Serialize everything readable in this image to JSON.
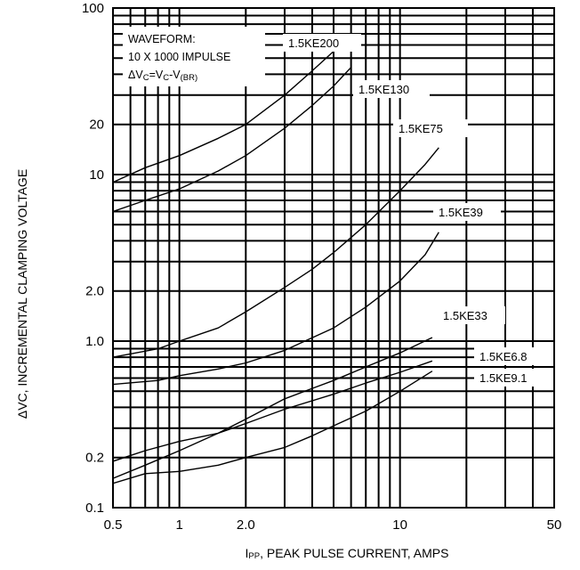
{
  "chart_data": {
    "type": "line",
    "x_scale": "log",
    "y_scale": "log",
    "xlim": [
      0.5,
      50
    ],
    "ylim": [
      0.1,
      100
    ],
    "grid": true,
    "xlabel": {
      "prefix": "I",
      "sub": "PP",
      "rest": ", PEAK PULSE CURRENT, AMPS"
    },
    "ylabel": "ΔVC, INCREMENTAL CLAMPING VOLTAGE",
    "x_tick_labels": [
      {
        "value": 0.5,
        "label": "0.5"
      },
      {
        "value": 1,
        "label": "1"
      },
      {
        "value": 2,
        "label": "2.0"
      },
      {
        "value": 10,
        "label": "10"
      },
      {
        "value": 50,
        "label": "50"
      }
    ],
    "y_tick_labels": [
      {
        "value": 0.1,
        "label": "0.1"
      },
      {
        "value": 0.2,
        "label": "0.2"
      },
      {
        "value": 1,
        "label": "1.0"
      },
      {
        "value": 2,
        "label": "2.0"
      },
      {
        "value": 10,
        "label": "10"
      },
      {
        "value": 20,
        "label": "20"
      },
      {
        "value": 100,
        "label": "100"
      }
    ],
    "annotation": {
      "line1": "WAVEFORM:",
      "line2": "10 X 1000 IMPULSE",
      "line3_parts": [
        "ΔV",
        "C",
        "=V",
        "C",
        "-V",
        "(BR)"
      ]
    },
    "series": [
      {
        "name": "1.5KE200",
        "x": [
          0.5,
          0.7,
          1.0,
          1.5,
          2.0,
          3.0,
          4.0,
          5.0
        ],
        "y": [
          9.0,
          11.0,
          13.0,
          16.5,
          20.0,
          30.0,
          42.0,
          55.0
        ]
      },
      {
        "name": "1.5KE130",
        "x": [
          0.5,
          0.7,
          1.0,
          1.5,
          2.0,
          3.0,
          4.0,
          5.0,
          6.0
        ],
        "y": [
          6.0,
          7.0,
          8.2,
          10.5,
          13.0,
          19.0,
          26.0,
          34.0,
          44.0
        ]
      },
      {
        "name": "1.5KE75",
        "x": [
          0.5,
          0.8,
          1.0,
          1.5,
          2.0,
          3.0,
          4.0,
          5.0,
          7.0,
          10.0,
          13.0,
          15.0
        ],
        "y": [
          0.8,
          0.9,
          1.0,
          1.2,
          1.5,
          2.1,
          2.7,
          3.4,
          5.0,
          8.0,
          11.5,
          14.5
        ]
      },
      {
        "name": "1.5KE39",
        "x": [
          0.5,
          0.8,
          1.0,
          1.5,
          2.0,
          3.0,
          5.0,
          7.0,
          10.0,
          13.0,
          15.0
        ],
        "y": [
          0.55,
          0.58,
          0.62,
          0.68,
          0.74,
          0.88,
          1.2,
          1.6,
          2.3,
          3.3,
          4.5
        ]
      },
      {
        "name": "1.5KE33",
        "x": [
          0.5,
          0.7,
          1.0,
          1.5,
          2.0,
          3.0,
          4.0,
          5.0,
          7.0,
          10.0,
          14.0
        ],
        "y": [
          0.15,
          0.18,
          0.22,
          0.28,
          0.34,
          0.45,
          0.52,
          0.58,
          0.7,
          0.85,
          1.05
        ]
      },
      {
        "name": "1.5KE6.8",
        "x": [
          0.5,
          0.7,
          1.0,
          1.5,
          2.0,
          3.0,
          5.0,
          7.0,
          10.0,
          14.0
        ],
        "y": [
          0.19,
          0.22,
          0.25,
          0.28,
          0.32,
          0.39,
          0.48,
          0.56,
          0.65,
          0.76
        ]
      },
      {
        "name": "1.5KE9.1",
        "x": [
          0.5,
          0.7,
          1.0,
          1.5,
          2.0,
          3.0,
          4.0,
          5.0,
          7.0,
          10.0,
          14.0
        ],
        "y": [
          0.14,
          0.16,
          0.165,
          0.18,
          0.2,
          0.23,
          0.27,
          0.31,
          0.38,
          0.5,
          0.66
        ]
      }
    ]
  }
}
